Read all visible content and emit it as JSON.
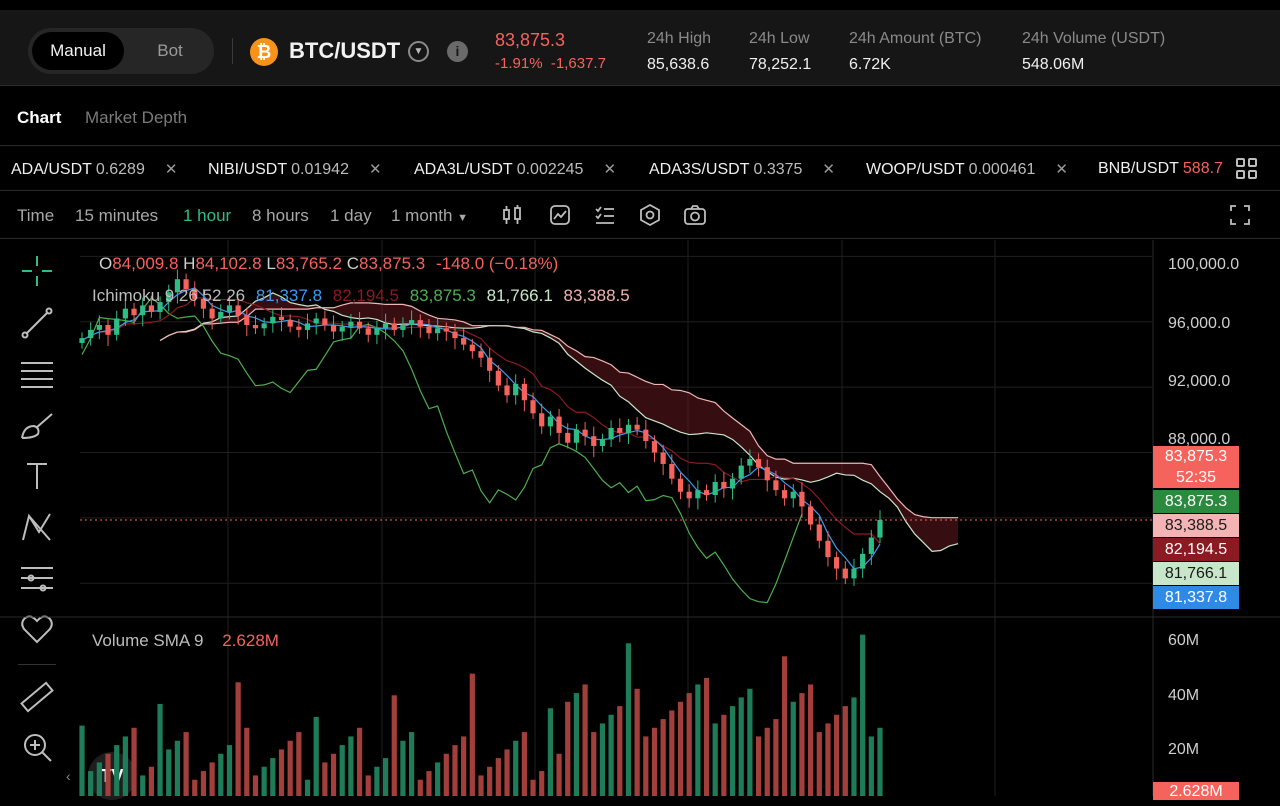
{
  "header": {
    "mode_manual": "Manual",
    "mode_bot": "Bot",
    "pair": "BTC/USDT",
    "coin_symbol": "₿",
    "last_price": "83,875.3",
    "change_pct": "-1.91%",
    "change_abs": "-1,637.7",
    "stats": [
      {
        "label": "24h High",
        "value": "85,638.6"
      },
      {
        "label": "24h Low",
        "value": "78,252.1"
      },
      {
        "label": "24h Amount (BTC)",
        "value": "6.72K"
      },
      {
        "label": "24h Volume (USDT)",
        "value": "548.06M"
      }
    ]
  },
  "tabs": {
    "chart": "Chart",
    "depth": "Market Depth"
  },
  "tickers": [
    {
      "pair": "ADA/USDT",
      "price": "0.6289"
    },
    {
      "pair": "NIBI/USDT",
      "price": "0.01942"
    },
    {
      "pair": "ADA3L/USDT",
      "price": "0.002245"
    },
    {
      "pair": "ADA3S/USDT",
      "price": "0.3375"
    },
    {
      "pair": "WOOP/USDT",
      "price": "0.000461"
    },
    {
      "pair": "BNB/USDT",
      "price": "588.7"
    }
  ],
  "toolbar": {
    "time_label": "Time",
    "intervals": [
      "15 minutes",
      "1 hour",
      "8 hours",
      "1 day",
      "1 month"
    ],
    "active_interval": "1 hour"
  },
  "legend": {
    "o_label": "O",
    "o": "84,009.8",
    "h_label": "H",
    "h": "84,102.8",
    "l_label": "L",
    "l": "83,765.2",
    "c_label": "C",
    "c": "83,875.3",
    "delta": "-148.0 (−0.18%)",
    "ichimoku_label": "Ichimoku 9 26 52 26",
    "ichimoku_values": [
      "81,337.8",
      "82,194.5",
      "83,875.3",
      "81,766.1",
      "83,388.5"
    ],
    "volume_label": "Volume SMA 9",
    "volume_value": "2.628M"
  },
  "colors": {
    "up": "#2ebd85",
    "down": "#f6625c",
    "tenkan": "#3d9bf0",
    "kijun": "#8b1a22",
    "chikou": "#4caf50",
    "spanA": "#c8e6c9",
    "spanB": "#f4b4b4"
  },
  "price_axis": [
    "100,000.0",
    "96,000.0",
    "92,000.0",
    "88,000.0"
  ],
  "price_tags": [
    {
      "text": "83,875.3",
      "sub": "52:35",
      "color": "#f6625c"
    },
    {
      "text": "83,875.3",
      "color": "#2a8a3e"
    },
    {
      "text": "83,388.5",
      "color": "#f4b4b4"
    },
    {
      "text": "82,194.5",
      "color": "#8b1a22"
    },
    {
      "text": "81,766.1",
      "color": "#c8e6c9"
    },
    {
      "text": "81,337.8",
      "color": "#2f8ae6"
    }
  ],
  "volume_axis": [
    "60M",
    "40M",
    "20M"
  ],
  "volume_tag": "2.628M",
  "chart_data": {
    "type": "candlestick",
    "ylim": [
      78000,
      101000
    ],
    "volume_ylim": [
      0,
      65000000
    ],
    "close": [
      95000,
      95500,
      95800,
      95200,
      96200,
      96800,
      96400,
      97000,
      96600,
      97200,
      97800,
      98600,
      98000,
      97400,
      96800,
      96200,
      96600,
      97000,
      96400,
      95800,
      95600,
      95900,
      96300,
      96100,
      95700,
      95500,
      95900,
      96200,
      95800,
      95400,
      95700,
      96000,
      95600,
      95200,
      95600,
      95900,
      95500,
      95800,
      96100,
      95700,
      95300,
      95600,
      95400,
      95000,
      94600,
      94200,
      93800,
      93000,
      92100,
      91500,
      92200,
      91200,
      90400,
      89600,
      90200,
      89200,
      88600,
      89400,
      89000,
      88400,
      88800,
      89500,
      89200,
      89700,
      89400,
      88700,
      88000,
      87300,
      86400,
      85600,
      85200,
      85700,
      85400,
      86200,
      85800,
      86400,
      87200,
      87600,
      87100,
      86300,
      85700,
      85200,
      85600,
      84700,
      83600,
      82600,
      81600,
      80900,
      80300,
      80900,
      81800,
      82800,
      83875
    ]
  },
  "tools_left": [
    "crosshair-tool",
    "trendline-tool",
    "fib-tool",
    "brush-tool",
    "text-tool",
    "pattern-tool",
    "measure-tool",
    "favorite-tool",
    "ruler-tool",
    "zoom-tool"
  ]
}
